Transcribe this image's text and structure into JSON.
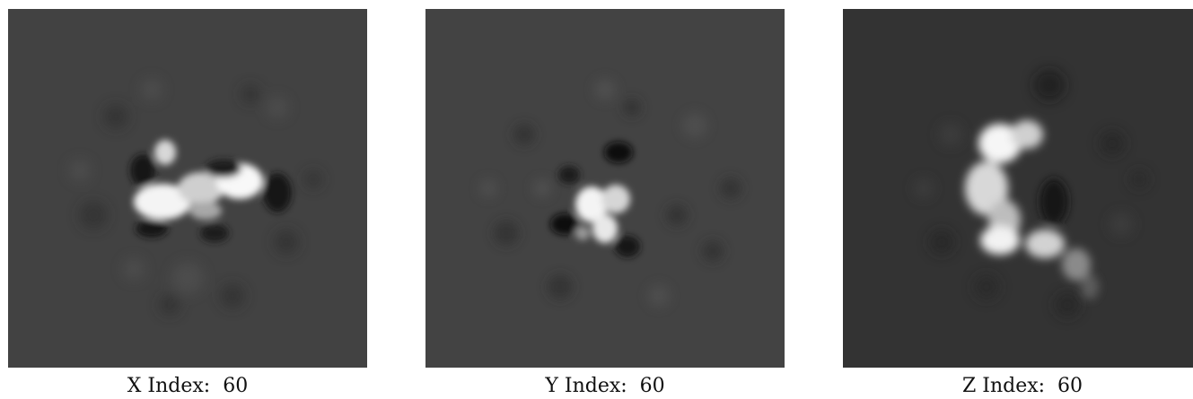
{
  "colors": {
    "background": "#ffffff",
    "slice_background": "#424242",
    "slice_background_z": "#333333",
    "signal_bright": "#ffffff",
    "signal_dark": "#0a0a0a"
  },
  "panels": [
    {
      "id": "x",
      "caption": "X Index:  60"
    },
    {
      "id": "y",
      "caption": "Y Index:  60"
    },
    {
      "id": "z",
      "caption": "Z Index:  60"
    }
  ]
}
